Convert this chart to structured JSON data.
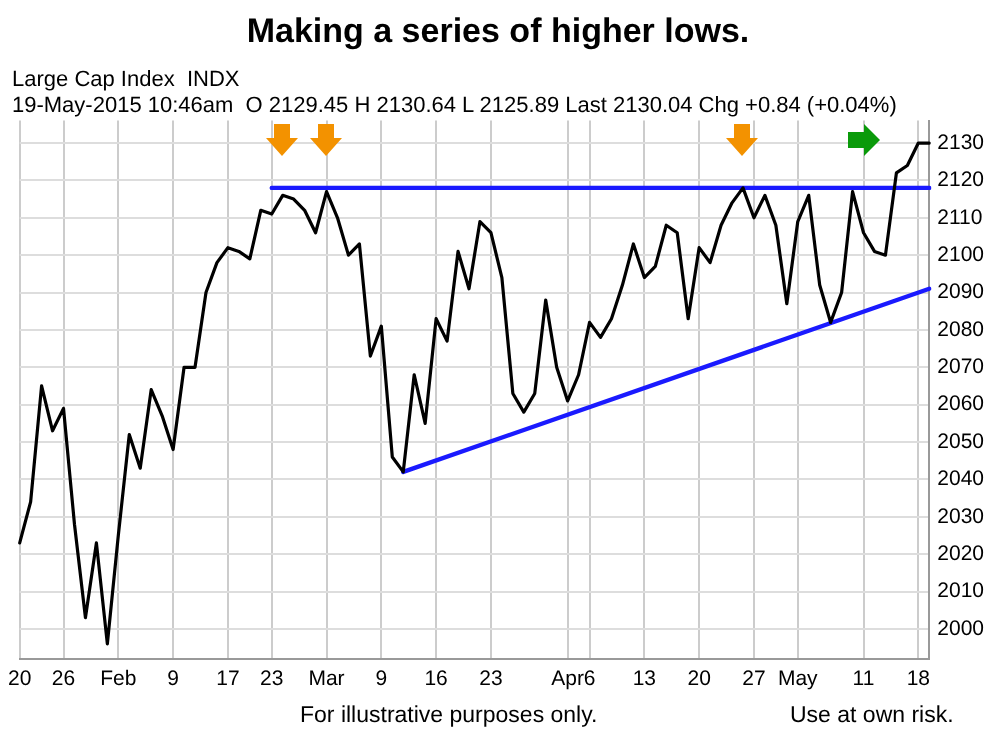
{
  "chart_data": {
    "type": "line",
    "title": "Making a series of higher lows.",
    "annotations": [
      "Large Cap Index  INDX",
      "19-May-2015 10:46am  O 2129.45 H 2130.64 L 2125.89 Last 2130.04 Chg +0.84 (+0.04%)",
      "For illustrative purposes only.",
      "Use at own risk."
    ],
    "categories": [
      "20",
      null,
      null,
      null,
      "26",
      null,
      null,
      null,
      null,
      "Feb",
      null,
      null,
      null,
      null,
      "9",
      null,
      null,
      null,
      null,
      "17",
      null,
      null,
      null,
      "23",
      null,
      null,
      null,
      null,
      "Mar",
      null,
      null,
      null,
      null,
      "9",
      null,
      null,
      null,
      null,
      "16",
      null,
      null,
      null,
      null,
      "23",
      null,
      null,
      null,
      null,
      null,
      null,
      "Apr",
      null,
      "6",
      null,
      null,
      null,
      null,
      "13",
      null,
      null,
      null,
      null,
      "20",
      null,
      null,
      null,
      null,
      "27",
      null,
      null,
      null,
      "May",
      null,
      null,
      null,
      null,
      null,
      "11",
      null,
      null,
      null,
      null,
      "18",
      null
    ],
    "series": [
      {
        "color": "#000000",
        "values": [
          2023,
          2034,
          2065,
          2053,
          2059,
          2028,
          2003,
          2023,
          1996,
          2025,
          2052,
          2043,
          2064,
          2057,
          2048,
          2070,
          2070,
          2090,
          2098,
          2102,
          2101,
          2099,
          2112,
          2111,
          2116,
          2115,
          2112,
          2106,
          2117,
          2110,
          2100,
          2103,
          2073,
          2081,
          2046,
          2042,
          2068,
          2055,
          2083,
          2077,
          2101,
          2091,
          2109,
          2106,
          2094,
          2063,
          2058,
          2063,
          2088,
          2070,
          2061,
          2068,
          2082,
          2078,
          2083,
          2092,
          2103,
          2094,
          2097,
          2108,
          2106,
          2083,
          2102,
          2098,
          2108,
          2114,
          2118,
          2110,
          2116,
          2108,
          2087,
          2109,
          2116,
          2092,
          2082,
          2090,
          2117,
          2106,
          2101,
          2100,
          2122,
          2124,
          2130,
          2130
        ]
      },
      {
        "type": "line",
        "color": "#1a1aff",
        "values": [
          null,
          null,
          null,
          null,
          null,
          null,
          null,
          null,
          null,
          null,
          null,
          null,
          null,
          null,
          null,
          null,
          null,
          null,
          null,
          null,
          null,
          null,
          null,
          2118,
          null,
          null,
          null,
          null,
          null,
          null,
          null,
          null,
          null,
          null,
          null,
          null,
          null,
          null,
          null,
          null,
          null,
          null,
          null,
          null,
          null,
          null,
          null,
          null,
          null,
          null,
          null,
          null,
          null,
          null,
          null,
          null,
          null,
          null,
          null,
          null,
          null,
          null,
          null,
          null,
          null,
          null,
          null,
          null,
          null,
          null,
          null,
          null,
          null,
          null,
          null,
          null,
          null,
          null,
          null,
          null,
          null,
          null,
          null,
          2118
        ]
      },
      {
        "type": "line",
        "color": "#1a1aff",
        "values": [
          null,
          null,
          null,
          null,
          null,
          null,
          null,
          null,
          null,
          null,
          null,
          null,
          null,
          null,
          null,
          null,
          null,
          null,
          null,
          null,
          null,
          null,
          null,
          null,
          null,
          null,
          null,
          null,
          null,
          null,
          null,
          null,
          null,
          null,
          null,
          2042,
          null,
          null,
          null,
          null,
          null,
          null,
          null,
          null,
          null,
          null,
          null,
          null,
          null,
          null,
          null,
          null,
          null,
          null,
          null,
          null,
          null,
          null,
          null,
          null,
          null,
          null,
          null,
          null,
          null,
          null,
          null,
          null,
          null,
          null,
          null,
          null,
          null,
          null,
          null,
          null,
          null,
          null,
          null,
          null,
          null,
          null,
          null,
          2091
        ]
      }
    ],
    "ylim": [
      1992,
      2136
    ],
    "yticks": [
      2000,
      2010,
      2020,
      2030,
      2040,
      2050,
      2060,
      2070,
      2080,
      2090,
      2100,
      2110,
      2120,
      2130
    ],
    "grid": true,
    "legend": false,
    "marker": "none",
    "line_style": "solid"
  }
}
